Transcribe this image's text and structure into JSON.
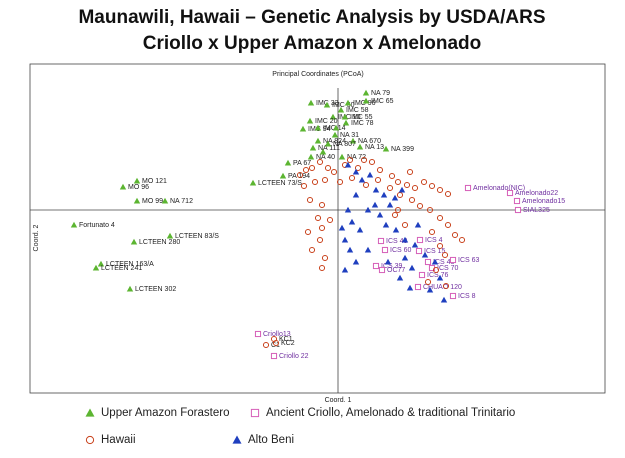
{
  "chart_data": {
    "type": "scatter",
    "title": "Maunawili, Hawaii – Genetic Analysis by USDA/ARS",
    "subtitle": "Criollo x Upper Amazon x Amelonado",
    "plot_title": "Principal Coordinates (PCoA)",
    "xlabel": "Coord. 1",
    "ylabel": "Coord. 2",
    "xlim": [
      -3.08,
      2.67
    ],
    "ylim": [
      -1.83,
      1.22
    ],
    "series": [
      {
        "name": "Upper Amazon Forastero",
        "color": "#5cb531",
        "marker": "triangle",
        "label_color": "#222222",
        "x": [
          -0.27,
          -0.11,
          0.1,
          0.28,
          0.28,
          0.03,
          -0.05,
          0.07,
          -0.28,
          0.08,
          -0.35,
          -0.2,
          -0.03,
          -0.2,
          0.15,
          -0.25,
          -0.1,
          0.22,
          0.48,
          -0.27,
          0.04,
          -0.5,
          -0.55,
          -0.85,
          -2.01,
          -2.15,
          -1.73,
          -2.01,
          -2.64,
          -1.68,
          -2.04,
          -2.37,
          -2.42,
          -2.08,
          -0.02,
          -0.15
        ],
        "y": [
          1.07,
          1.05,
          1.07,
          1.17,
          1.09,
          1.0,
          0.93,
          0.93,
          0.89,
          0.87,
          0.81,
          0.82,
          0.75,
          0.69,
          0.69,
          0.62,
          0.66,
          0.63,
          0.61,
          0.53,
          0.53,
          0.47,
          0.34,
          0.27,
          0.29,
          0.23,
          0.09,
          0.09,
          -0.15,
          -0.26,
          -0.32,
          -0.54,
          -0.58,
          -0.79,
          0.82,
          0.58
        ],
        "labels": [
          "IMC 33",
          "IMC 50",
          "IMC 96",
          "NA 79",
          "IMC 65",
          "IMC 58",
          "IMC 10",
          "IMC 55",
          "IMC 20",
          "IMC 78",
          "IMC 94",
          "IMC 14",
          "NA 31",
          "NA 824",
          "NA 670",
          "NA 111",
          "NA 807",
          "NA 13",
          "NA 399",
          "NA 40",
          "NA 72",
          "PA 67",
          "PA 194",
          "LCTEEN 73/S",
          "MO 121",
          "MO 96",
          "NA 712",
          "MO 99",
          "Fortunato 4",
          "LCTEEN 83/S",
          "LCTEEN 280",
          "LCTEEN 163/A",
          "LCTEEN 241",
          "LCTEEN 302",
          null,
          null
        ]
      },
      {
        "name": "Ancient Criollo, Amelonado & traditional Trinitario",
        "color": "#d65fb8",
        "marker": "square",
        "label_color": "#7030a0",
        "x": [
          1.3,
          1.72,
          1.79,
          1.8,
          0.43,
          0.82,
          0.47,
          0.81,
          0.38,
          0.9,
          1.15,
          0.94,
          0.84,
          0.44,
          0.8,
          1.15,
          -0.8,
          -0.64
        ],
        "y": [
          0.22,
          0.17,
          0.09,
          0.0,
          -0.31,
          -0.3,
          -0.4,
          -0.41,
          -0.56,
          -0.52,
          -0.5,
          -0.58,
          -0.65,
          -0.6,
          -0.77,
          -0.86,
          -1.24,
          -1.46
        ],
        "labels": [
          "Amelonado(NIC)",
          "Amelonado22",
          "Amelonado15",
          "SIAL325",
          "ICS 48",
          "ICS 4",
          "ICS 60",
          "ICS 15",
          "ICS 39",
          "ICS 43",
          "ICS 63",
          "ICS 70",
          "ICS 76",
          "OC77",
          "CHUAO 120",
          "ICS 8",
          "Criollo13",
          "Criollo 22"
        ]
      },
      {
        "name": "Hawaii",
        "color": "#c8401a",
        "marker": "circle",
        "label_color": "#222222",
        "x": [
          -0.38,
          -0.32,
          -0.26,
          -0.18,
          -0.1,
          -0.04,
          0.07,
          0.12,
          0.2,
          0.26,
          0.34,
          0.42,
          0.54,
          0.6,
          0.69,
          0.77,
          0.86,
          0.94,
          1.02,
          1.1,
          -0.34,
          -0.23,
          -0.13,
          0.02,
          0.14,
          0.28,
          0.4,
          0.52,
          0.62,
          0.74,
          0.82,
          0.92,
          1.02,
          1.1,
          1.17,
          1.24,
          -0.28,
          -0.16,
          -0.2,
          -0.08,
          -0.3,
          -0.18,
          -0.26,
          -0.13,
          -0.16,
          -0.16,
          0.6,
          0.67,
          0.94,
          1.02,
          1.07,
          0.9,
          1.08,
          0.72,
          0.57,
          0.98,
          -0.64,
          -0.72,
          -0.62
        ],
        "y": [
          0.35,
          0.4,
          0.42,
          0.48,
          0.42,
          0.38,
          0.45,
          0.5,
          0.42,
          0.5,
          0.48,
          0.4,
          0.34,
          0.28,
          0.25,
          0.22,
          0.28,
          0.24,
          0.2,
          0.16,
          0.24,
          0.28,
          0.3,
          0.28,
          0.32,
          0.25,
          0.3,
          0.22,
          0.15,
          0.1,
          0.04,
          0.0,
          -0.08,
          -0.15,
          -0.25,
          -0.3,
          0.1,
          0.05,
          -0.08,
          -0.1,
          -0.22,
          -0.3,
          -0.4,
          -0.48,
          -0.58,
          -0.18,
          0.0,
          -0.15,
          -0.22,
          -0.36,
          -0.45,
          -0.72,
          -0.76,
          0.38,
          -0.05,
          -0.6,
          -1.29,
          -1.35,
          -1.33
        ],
        "labels": [
          null,
          null,
          null,
          null,
          null,
          null,
          null,
          null,
          null,
          null,
          null,
          null,
          null,
          null,
          null,
          null,
          null,
          null,
          null,
          null,
          null,
          null,
          null,
          null,
          null,
          null,
          null,
          null,
          null,
          null,
          null,
          null,
          null,
          null,
          null,
          null,
          null,
          null,
          null,
          null,
          null,
          null,
          null,
          null,
          null,
          null,
          null,
          null,
          null,
          null,
          null,
          null,
          null,
          null,
          null,
          null,
          "KC1",
          "C1",
          "KC2"
        ]
      },
      {
        "name": "Alto Beni",
        "color": "#1f3fbf",
        "marker": "triangle",
        "x": [
          0.1,
          0.18,
          0.24,
          0.32,
          0.38,
          0.46,
          0.52,
          0.57,
          0.64,
          0.18,
          0.1,
          0.14,
          0.22,
          0.07,
          0.12,
          0.18,
          0.07,
          0.3,
          0.37,
          0.42,
          0.48,
          0.58,
          0.67,
          0.77,
          0.67,
          0.74,
          0.87,
          0.97,
          1.02,
          0.92,
          0.72,
          0.62,
          0.5,
          0.3,
          0.04,
          0.8,
          1.06
        ],
        "y": [
          0.45,
          0.38,
          0.3,
          0.35,
          0.2,
          0.15,
          0.05,
          0.12,
          0.2,
          0.15,
          0.0,
          -0.12,
          -0.2,
          -0.3,
          -0.4,
          -0.52,
          -0.6,
          0.0,
          0.05,
          -0.05,
          -0.15,
          -0.2,
          -0.3,
          -0.35,
          -0.48,
          -0.58,
          -0.45,
          -0.52,
          -0.68,
          -0.8,
          -0.78,
          -0.68,
          -0.52,
          -0.4,
          -0.18,
          -0.15,
          -0.9
        ]
      }
    ]
  }
}
